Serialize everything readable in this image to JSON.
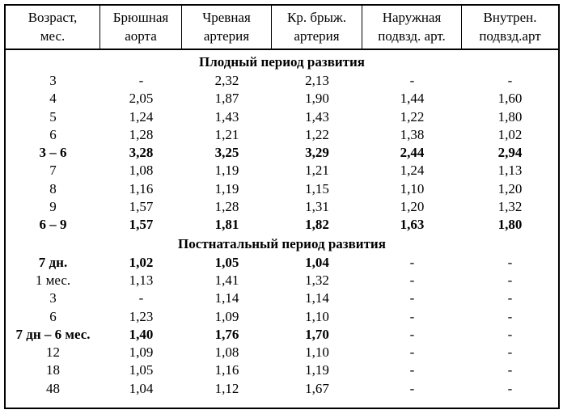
{
  "table": {
    "columns": [
      {
        "line1": "Возраст,",
        "line2": "мес."
      },
      {
        "line1": "Брюшная",
        "line2": "аорта"
      },
      {
        "line1": "Чревная",
        "line2": "артерия"
      },
      {
        "line1": "Кр. брыж.",
        "line2": "артерия"
      },
      {
        "line1": "Наружная",
        "line2": "подвзд. арт."
      },
      {
        "line1": "Внутрен.",
        "line2": "подвзд.арт"
      }
    ],
    "sections": [
      {
        "title": "Плодный период развития",
        "rows": [
          {
            "label": "3",
            "bold": false,
            "values": [
              "-",
              "2,32",
              "2,13",
              "-",
              "-"
            ]
          },
          {
            "label": "4",
            "bold": false,
            "values": [
              "2,05",
              "1,87",
              "1,90",
              "1,44",
              "1,60"
            ]
          },
          {
            "label": "5",
            "bold": false,
            "values": [
              "1,24",
              "1,43",
              "1,43",
              "1,22",
              "1,80"
            ]
          },
          {
            "label": "6",
            "bold": false,
            "values": [
              "1,28",
              "1,21",
              "1,22",
              "1,38",
              "1,02"
            ]
          },
          {
            "label": "3 – 6",
            "bold": true,
            "values": [
              "3,28",
              "3,25",
              "3,29",
              "2,44",
              "2,94"
            ]
          },
          {
            "label": "7",
            "bold": false,
            "values": [
              "1,08",
              "1,19",
              "1,21",
              "1,24",
              "1,13"
            ]
          },
          {
            "label": "8",
            "bold": false,
            "values": [
              "1,16",
              "1,19",
              "1,15",
              "1,10",
              "1,20"
            ]
          },
          {
            "label": "9",
            "bold": false,
            "values": [
              "1,57",
              "1,28",
              "1,31",
              "1,20",
              "1,32"
            ]
          },
          {
            "label": "6 – 9",
            "bold": true,
            "values": [
              "1,57",
              "1,81",
              "1,82",
              "1,63",
              "1,80"
            ]
          }
        ]
      },
      {
        "title": "Постнатальный период развития",
        "rows": [
          {
            "label": "7 дн.",
            "bold": true,
            "values": [
              "1,02",
              "1,05",
              "1,04",
              "-",
              "-"
            ]
          },
          {
            "label": "1 мес.",
            "bold": false,
            "values": [
              "1,13",
              "1,41",
              "1,32",
              "-",
              "-"
            ]
          },
          {
            "label": "3",
            "bold": false,
            "values": [
              "-",
              "1,14",
              "1,14",
              "-",
              "-"
            ]
          },
          {
            "label": "6",
            "bold": false,
            "values": [
              "1,23",
              "1,09",
              "1,10",
              "-",
              "-"
            ]
          },
          {
            "label": "7 дн – 6 мес.",
            "bold": true,
            "values": [
              "1,40",
              "1,76",
              "1,70",
              "-",
              "-"
            ]
          },
          {
            "label": "12",
            "bold": false,
            "values": [
              "1,09",
              "1,08",
              "1,10",
              "-",
              "-"
            ]
          },
          {
            "label": "18",
            "bold": false,
            "values": [
              "1,05",
              "1,16",
              "1,19",
              "-",
              "-"
            ]
          },
          {
            "label": "48",
            "bold": false,
            "values": [
              "1,04",
              "1,12",
              "1,67",
              "-",
              "-"
            ]
          }
        ]
      }
    ]
  }
}
